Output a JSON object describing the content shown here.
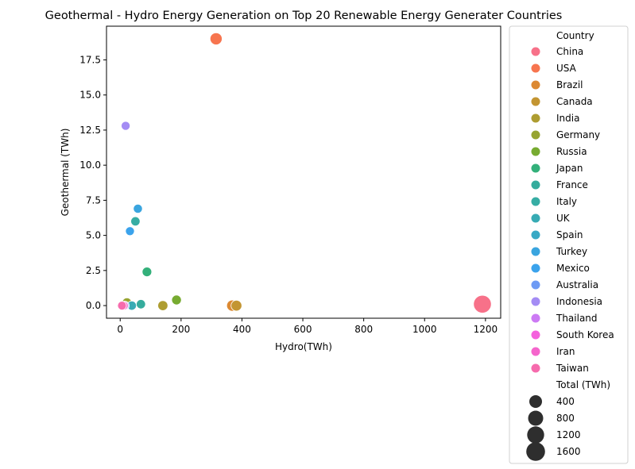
{
  "chart_data": {
    "type": "scatter",
    "title": "Geothermal - Hydro Energy Generation on Top 20 Renewable Energy Generater Countries",
    "xlabel": "Hydro(TWh)",
    "ylabel": "Geothermal (TWh)",
    "xlim": [
      -45,
      1250
    ],
    "ylim": [
      -0.9,
      19.9
    ],
    "xticks": [
      0,
      200,
      400,
      600,
      800,
      1000,
      1200
    ],
    "yticks": [
      0.0,
      2.5,
      5.0,
      7.5,
      10.0,
      12.5,
      15.0,
      17.5
    ],
    "grid": false,
    "legend_placement": "outside-right",
    "hue_title": "Country",
    "size_title": "Total (TWh)",
    "size_legend": [
      400,
      800,
      1200,
      1600
    ],
    "points": [
      {
        "name": "China",
        "x": 1190,
        "y": 0.1,
        "total": 1800,
        "color": "#f77189"
      },
      {
        "name": "USA",
        "x": 315,
        "y": 19.0,
        "total": 700,
        "color": "#f7754f"
      },
      {
        "name": "Brazil",
        "x": 368,
        "y": 0.0,
        "total": 490,
        "color": "#dc8932"
      },
      {
        "name": "Canada",
        "x": 382,
        "y": 0.0,
        "total": 450,
        "color": "#c39532"
      },
      {
        "name": "India",
        "x": 140,
        "y": 0.0,
        "total": 300,
        "color": "#ae9d31"
      },
      {
        "name": "Germany",
        "x": 22,
        "y": 0.2,
        "total": 230,
        "color": "#97a431"
      },
      {
        "name": "Russia",
        "x": 185,
        "y": 0.4,
        "total": 220,
        "color": "#77ab31"
      },
      {
        "name": "Japan",
        "x": 88,
        "y": 2.4,
        "total": 200,
        "color": "#33b07a"
      },
      {
        "name": "France",
        "x": 68,
        "y": 0.1,
        "total": 120,
        "color": "#35ac9d"
      },
      {
        "name": "Italy",
        "x": 50,
        "y": 6.0,
        "total": 120,
        "color": "#36ada4"
      },
      {
        "name": "UK",
        "x": 38,
        "y": 0.0,
        "total": 120,
        "color": "#37abb4"
      },
      {
        "name": "Spain",
        "x": 58,
        "y": 6.9,
        "total": 110,
        "color": "#38a9c5"
      },
      {
        "name": "Turkey",
        "x": 58,
        "y": 6.9,
        "total": 100,
        "color": "#3aa5df"
      },
      {
        "name": "Mexico",
        "x": 32,
        "y": 5.3,
        "total": 80,
        "color": "#3ba3ec"
      },
      {
        "name": "Australia",
        "x": 15,
        "y": 0.0,
        "total": 80,
        "color": "#6e9bf4"
      },
      {
        "name": "Indonesia",
        "x": 18,
        "y": 12.8,
        "total": 60,
        "color": "#a48cf4"
      },
      {
        "name": "Thailand",
        "x": 6,
        "y": 0.0,
        "total": 50,
        "color": "#cc7af4"
      },
      {
        "name": "South Korea",
        "x": 4,
        "y": 0.0,
        "total": 50,
        "color": "#f461dd"
      },
      {
        "name": "Iran",
        "x": 12,
        "y": 0.0,
        "total": 40,
        "color": "#f565cc"
      },
      {
        "name": "Taiwan",
        "x": 6,
        "y": 0.0,
        "total": 40,
        "color": "#f66bad"
      }
    ]
  }
}
